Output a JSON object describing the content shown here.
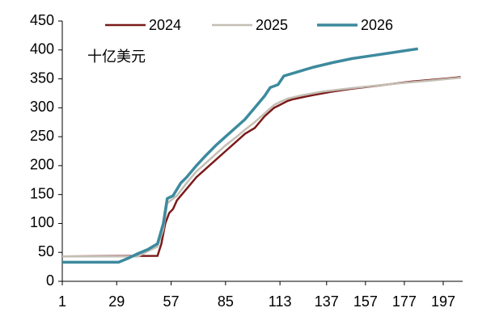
{
  "chart_data": {
    "type": "line",
    "annotation": "十亿美元",
    "xlim": [
      1,
      207
    ],
    "xticks": [
      1,
      29,
      57,
      85,
      113,
      137,
      157,
      177,
      197
    ],
    "ylim": [
      0,
      450
    ],
    "yticks": [
      0,
      50,
      100,
      150,
      200,
      250,
      300,
      350,
      400,
      450
    ],
    "legend": "top",
    "series": [
      {
        "name": "2024",
        "color": "#7b1a1a",
        "x": [
          1,
          50,
          52,
          54,
          56,
          58,
          60,
          65,
          70,
          75,
          80,
          85,
          90,
          95,
          100,
          105,
          110,
          113,
          117,
          120,
          130,
          140,
          150,
          160,
          170,
          180,
          190,
          200,
          206
        ],
        "values": [
          43,
          44,
          65,
          100,
          118,
          125,
          140,
          160,
          180,
          195,
          210,
          225,
          240,
          255,
          265,
          285,
          300,
          305,
          312,
          315,
          322,
          328,
          333,
          337,
          341,
          345,
          348,
          351,
          353
        ]
      },
      {
        "name": "2025",
        "color": "#c4beb4",
        "x": [
          1,
          40,
          45,
          50,
          53,
          55,
          60,
          65,
          70,
          75,
          80,
          85,
          90,
          95,
          100,
          105,
          110,
          113,
          117,
          125,
          135,
          150,
          170,
          190,
          206
        ],
        "values": [
          43,
          43,
          52,
          60,
          90,
          135,
          148,
          170,
          190,
          205,
          220,
          235,
          248,
          262,
          275,
          290,
          305,
          310,
          316,
          322,
          328,
          334,
          341,
          347,
          352
        ]
      },
      {
        "name": "2026",
        "color": "#3d8a9e",
        "x": [
          1,
          30,
          35,
          40,
          45,
          50,
          53,
          55,
          58,
          62,
          65,
          70,
          75,
          80,
          85,
          90,
          95,
          100,
          105,
          108,
          112,
          115,
          120,
          125,
          130,
          140,
          150,
          160,
          170,
          180,
          184
        ],
        "values": [
          33,
          33,
          40,
          48,
          55,
          65,
          100,
          143,
          148,
          170,
          180,
          200,
          218,
          235,
          250,
          265,
          280,
          300,
          320,
          335,
          340,
          355,
          360,
          365,
          370,
          378,
          385,
          390,
          395,
          400,
          402
        ]
      }
    ]
  }
}
